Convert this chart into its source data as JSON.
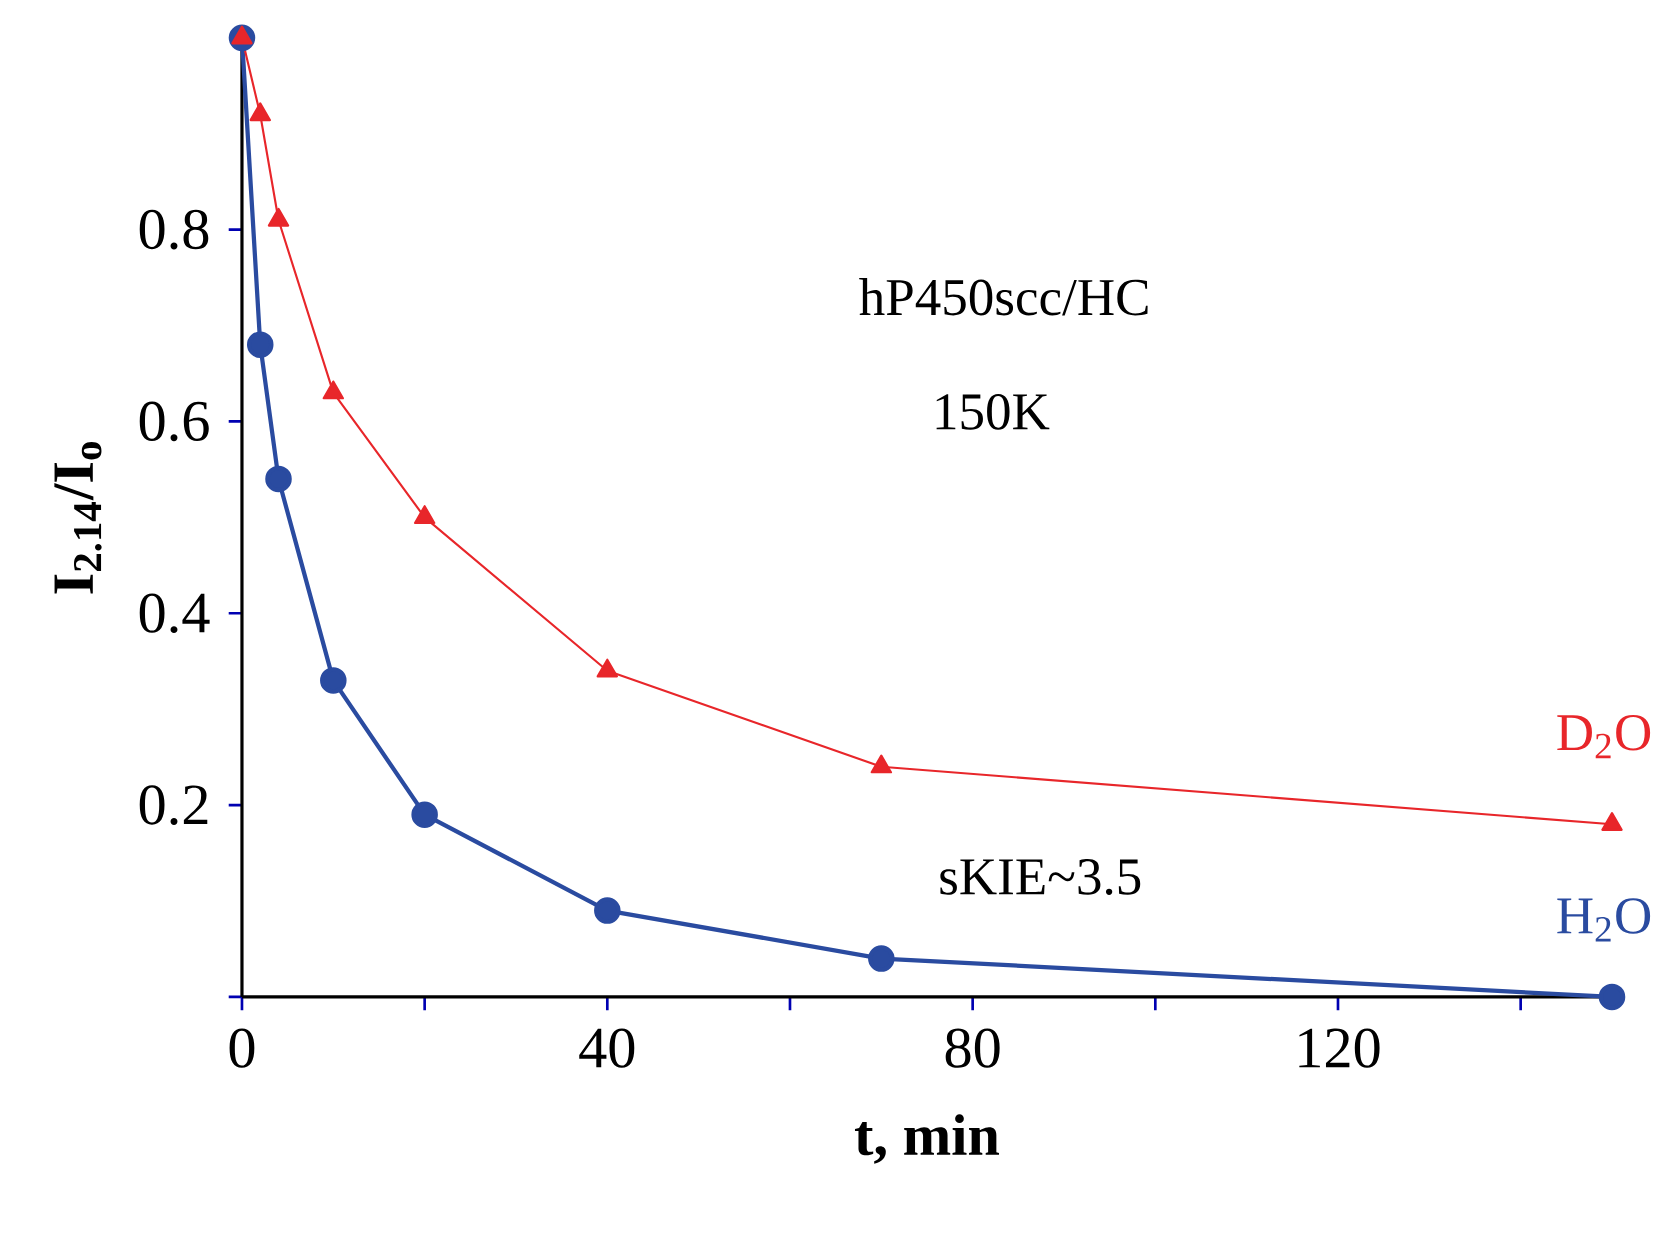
{
  "chart_data": {
    "type": "line",
    "xlabel": "**t, min**",
    "ylabel": "**I$_{2.14}$/I$_{o}$**",
    "xlim": [
      0,
      150
    ],
    "ylim": [
      0,
      1
    ],
    "xticks": [
      0,
      {
        "value": 20,
        "label": null
      },
      40,
      {
        "value": 60,
        "label": null
      },
      80,
      {
        "value": 100,
        "label": null
      },
      120,
      {
        "value": 140,
        "label": null
      }
    ],
    "yticks": [
      {
        "value": 0,
        "label": null
      },
      0.2,
      0.4,
      0.6,
      0.8
    ],
    "x": [
      0,
      2,
      4,
      10,
      20,
      40,
      70,
      150
    ],
    "series": [
      {
        "name": "D$_{2}$O",
        "color": "#e8262a",
        "marker": "triangle",
        "values": [
          1.0,
          0.92,
          0.81,
          0.63,
          0.5,
          0.34,
          0.24,
          0.18
        ]
      },
      {
        "name": "H$_{2}$O",
        "color": "#2a4ba0",
        "marker": "circle",
        "values": [
          1.0,
          0.68,
          0.54,
          0.33,
          0.19,
          0.09,
          0.04,
          0.0
        ]
      }
    ],
    "annotations": [
      "hP450scc/HC",
      "150K",
      "sKIE~3.5"
    ]
  }
}
